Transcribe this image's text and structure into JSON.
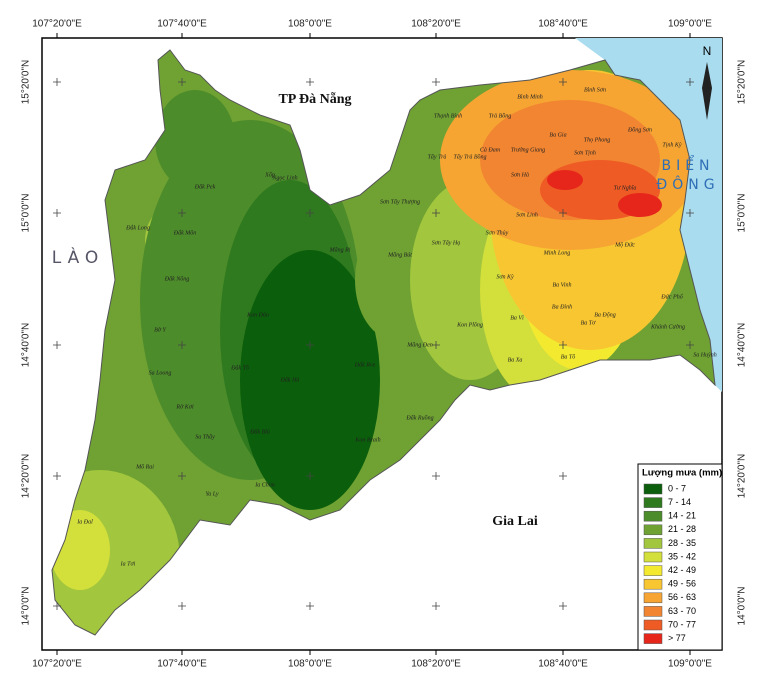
{
  "map": {
    "longitude_labels": [
      "107°20'0\"E",
      "107°40'0\"E",
      "108°0'0\"E",
      "108°20'0\"E",
      "108°40'0\"E",
      "109°0'0\"E"
    ],
    "latitude_labels": [
      "15°20'0\"N",
      "15°0'0\"N",
      "14°40'0\"N",
      "14°20'0\"N",
      "14°0'0\"N"
    ],
    "regions": {
      "da_nang": "TP Đà Nẵng",
      "laos": "LÀO",
      "sea_line1": "BIỂN",
      "sea_line2": "ĐÔNG",
      "gia_lai": "Gia Lai"
    },
    "north": "N",
    "place_labels": [
      "Thạnh Bình",
      "Trà Bồng",
      "Bình Minh",
      "Bình Sơn",
      "Đồng Sơn",
      "Ba Gia",
      "Thọ Phong",
      "Cà Đam",
      "Trường Giang",
      "Sơn Tịnh",
      "Tịnh Kỳ",
      "Tây Trà",
      "Tây Trà Bồng",
      "Sơn Hà",
      "Tư Nghĩa",
      "Sơn Linh",
      "Sơn Tây Thượng",
      "Sơn Tây Hạ",
      "Sơn Thủy",
      "Minh Long",
      "Sơn Kỳ",
      "Ba Vinh",
      "Ba Đình",
      "Ba Động",
      "Ba Tơ",
      "Ba Vì",
      "Ba Xa",
      "Ba Tô",
      "Mộ Đức",
      "Đức Phổ",
      "Khánh Cường",
      "Sa Huỳnh",
      "Kon Plông",
      "Măng Đen",
      "Măng Bút",
      "Măng Ri",
      "Ngọc Linh",
      "Xốp",
      "Đăk Pek",
      "Đắk Môn",
      "Đắk Long",
      "Đăk Nông",
      "Bờ Y",
      "Sa Loong",
      "Rờ Kơi",
      "Sa Thầy",
      "Mô Rai",
      "Ya Ly",
      "Ia Đal",
      "Ia Tơi",
      "Đắk Tô",
      "Kon Đào",
      "Đắk Hà",
      "Đắk Rve",
      "Đăk Blà",
      "Ia Chim",
      "Kon Braih",
      "Đăk Ruồng"
    ],
    "legend": {
      "title": "Lượng mưa (mm)",
      "classes": [
        {
          "label": "0 - 7",
          "color": "#0b5e0b"
        },
        {
          "label": "7 - 14",
          "color": "#2f7a1f"
        },
        {
          "label": "14 - 21",
          "color": "#4d8c2b"
        },
        {
          "label": "21 - 28",
          "color": "#6fa233"
        },
        {
          "label": "28 - 35",
          "color": "#a2c63d"
        },
        {
          "label": "35 - 42",
          "color": "#d3df3b"
        },
        {
          "label": "42 - 49",
          "color": "#f3ea30"
        },
        {
          "label": "49 - 56",
          "color": "#f8c631"
        },
        {
          "label": "56 - 63",
          "color": "#f6a533"
        },
        {
          "label": "63 - 70",
          "color": "#f28531"
        },
        {
          "label": "70 - 77",
          "color": "#ee5b25"
        },
        {
          "label": "> 77",
          "color": "#e6261b"
        }
      ]
    }
  }
}
